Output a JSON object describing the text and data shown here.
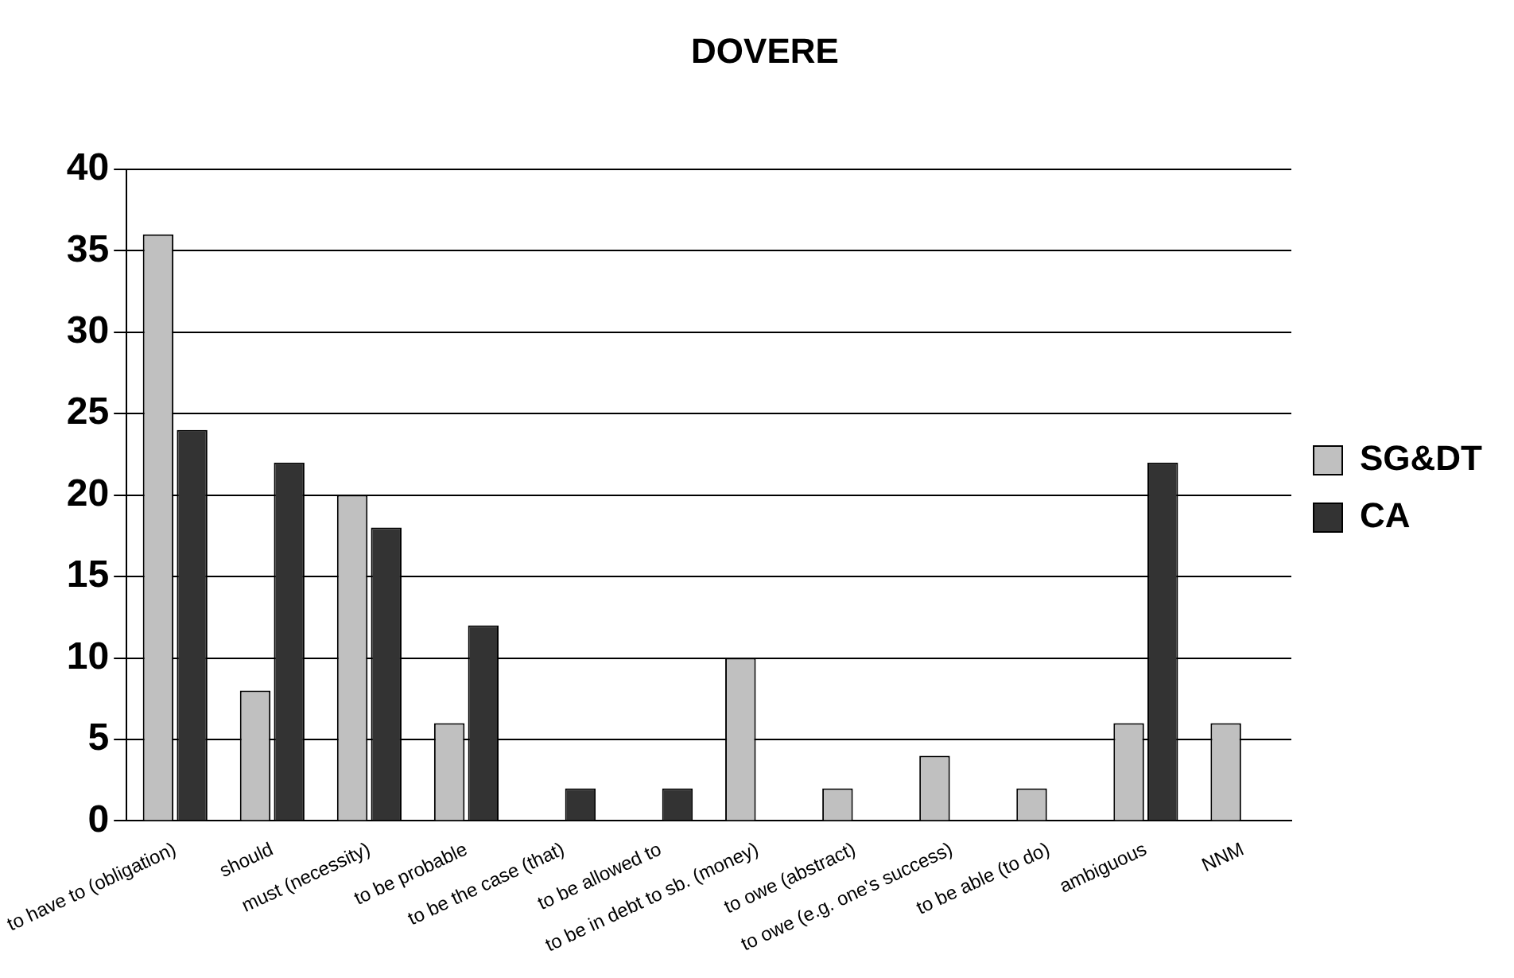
{
  "chart_data": {
    "type": "bar",
    "title": "DOVERE",
    "categories": [
      "to have to (obligation)",
      "should",
      "must (necessity)",
      "to be probable",
      "to be the case (that)",
      "to be allowed to",
      "to be in debt to sb. (money)",
      "to owe (abstract)",
      "to owe (e.g. one's success)",
      "to be able (to do)",
      "ambiguous",
      "NNM"
    ],
    "series": [
      {
        "name": "SG&DT",
        "color": "#c0c0c0",
        "values": [
          36,
          8,
          20,
          6,
          0,
          0,
          10,
          2,
          4,
          2,
          6,
          6
        ]
      },
      {
        "name": "CA",
        "color": "#333333",
        "values": [
          24,
          22,
          18,
          12,
          2,
          2,
          0,
          0,
          0,
          0,
          22,
          0
        ]
      }
    ],
    "ylim": [
      0,
      40
    ],
    "yticks": [
      0,
      5,
      10,
      15,
      20,
      25,
      30,
      35,
      40
    ],
    "grid": "y",
    "legend": "right"
  }
}
